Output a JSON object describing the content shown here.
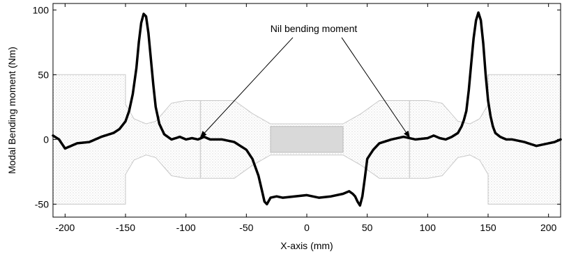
{
  "chart_data": {
    "type": "line",
    "xlabel": "X-axis (mm)",
    "ylabel": "Modal Bending moment (Nm)",
    "xlim": [
      -210,
      210
    ],
    "ylim": [
      -60,
      105
    ],
    "xticks": [
      -200,
      -150,
      -100,
      -50,
      0,
      50,
      100,
      150,
      200
    ],
    "xtick_labels": [
      "-200",
      "-150",
      "-100",
      "-50",
      "0",
      "50",
      "100",
      "150",
      "200"
    ],
    "yticks": [
      -50,
      0,
      50,
      100
    ],
    "ytick_labels": [
      "-50",
      "0",
      "50",
      "100"
    ],
    "grid": false,
    "series": [
      {
        "color": "#000000",
        "x": [
          -210,
          -205,
          -200,
          -190,
          -180,
          -170,
          -160,
          -155,
          -150,
          -147,
          -144,
          -141,
          -139,
          -137,
          -135,
          -133,
          -131,
          -129,
          -127,
          -125,
          -122,
          -118,
          -112,
          -105,
          -100,
          -95,
          -90,
          -85,
          -80,
          -70,
          -60,
          -50,
          -45,
          -40,
          -37,
          -35,
          -33,
          -30,
          -25,
          -20,
          -10,
          0,
          10,
          20,
          30,
          35,
          38,
          40,
          42,
          44,
          46,
          48,
          50,
          55,
          60,
          70,
          80,
          90,
          100,
          105,
          110,
          115,
          120,
          125,
          128,
          130,
          132,
          134,
          136,
          138,
          140,
          142,
          144,
          146,
          148,
          150,
          152,
          154,
          156,
          160,
          165,
          170,
          180,
          190,
          200,
          205,
          210
        ],
        "y": [
          3,
          0,
          -7,
          -3,
          -2,
          2,
          5,
          8,
          14,
          22,
          35,
          55,
          75,
          90,
          97,
          95,
          82,
          62,
          42,
          25,
          12,
          4,
          0,
          2,
          0,
          1,
          0,
          2,
          0,
          0,
          -2,
          -8,
          -15,
          -28,
          -40,
          -48,
          -50,
          -45,
          -44,
          -45,
          -44,
          -43,
          -45,
          -44,
          -42,
          -40,
          -42,
          -44,
          -48,
          -51,
          -44,
          -30,
          -15,
          -8,
          -3,
          0,
          2,
          0,
          1,
          3,
          1,
          0,
          2,
          5,
          10,
          15,
          22,
          38,
          58,
          78,
          92,
          98,
          92,
          74,
          50,
          30,
          18,
          10,
          5,
          2,
          0,
          0,
          -2,
          -5,
          -3,
          -2,
          0
        ]
      }
    ],
    "background_layer": "grey finite-element mesh outline of the specimen",
    "annotation": {
      "text": "Nil bending moment",
      "arrow_targets_x": [
        -88,
        85
      ],
      "arrow_targets_y": [
        0,
        0
      ]
    }
  }
}
